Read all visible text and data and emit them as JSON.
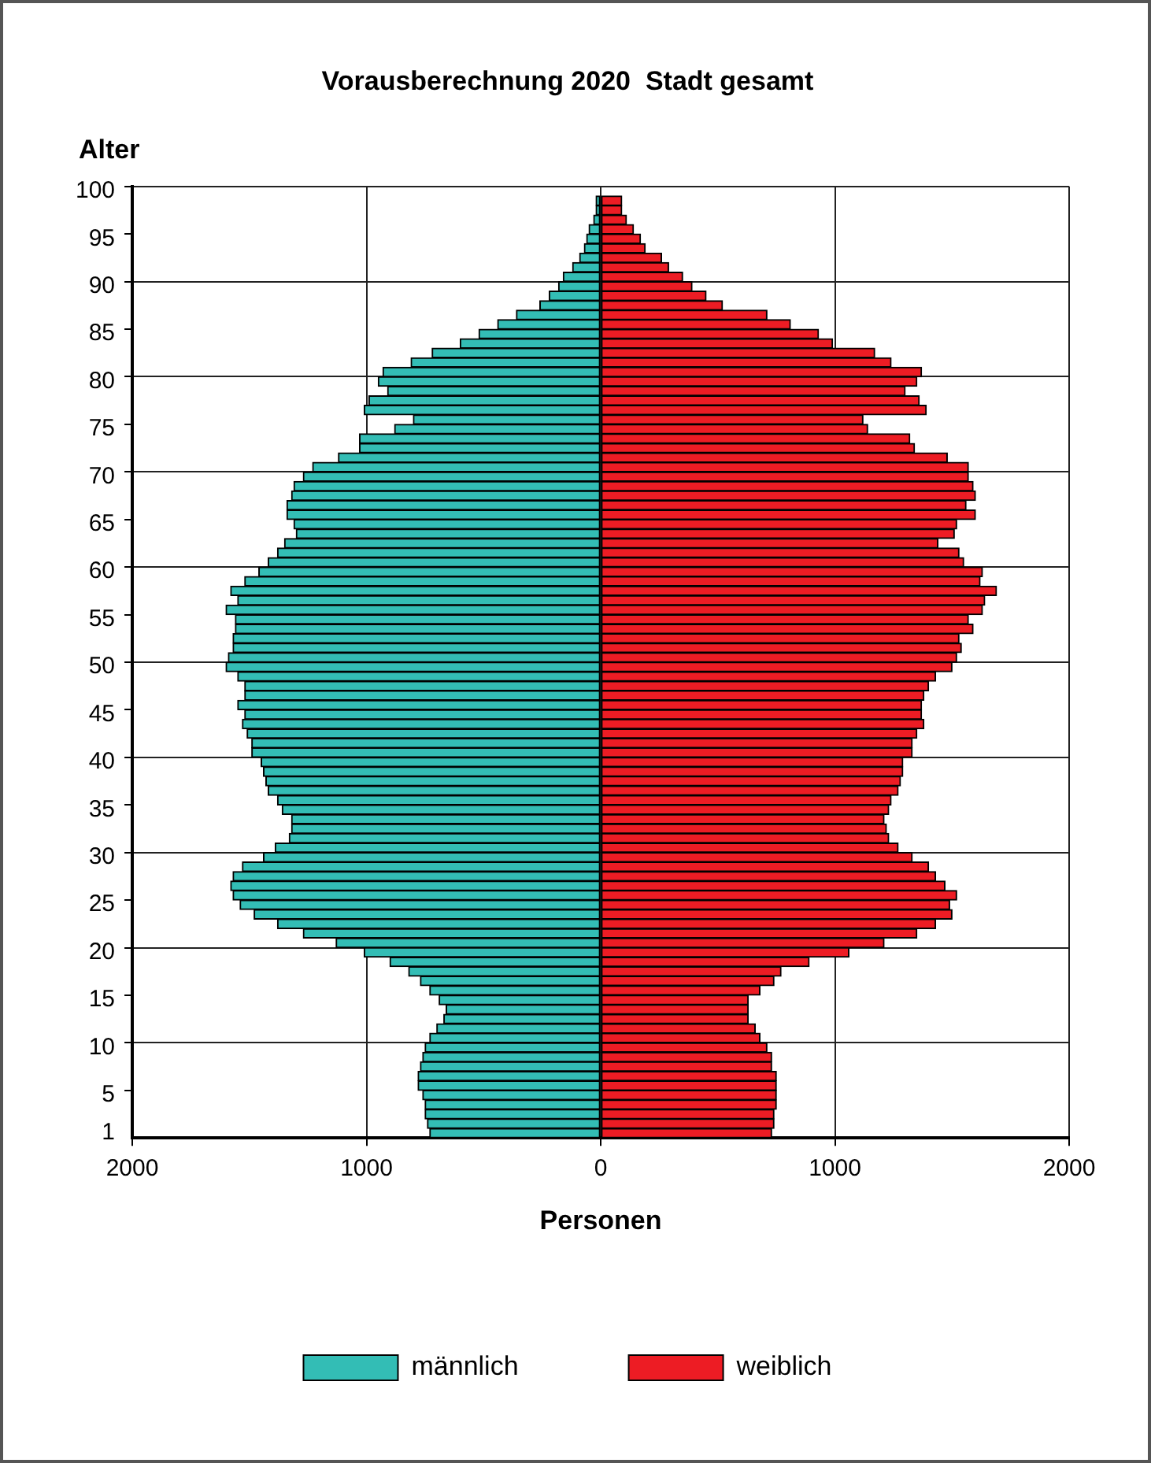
{
  "chart_data": {
    "type": "bar",
    "orientation": "horizontal",
    "title": "Vorausberechnung 2020  Stadt gesamt",
    "xlabel": "Personen",
    "ylabel": "Alter",
    "categories": [
      "100",
      null,
      null,
      null,
      null,
      "95",
      null,
      null,
      null,
      null,
      "90",
      null,
      null,
      null,
      null,
      "85",
      null,
      null,
      null,
      null,
      "80",
      null,
      null,
      null,
      null,
      "75",
      null,
      null,
      null,
      null,
      "70",
      null,
      null,
      null,
      null,
      "65",
      null,
      null,
      null,
      null,
      "60",
      null,
      null,
      null,
      null,
      "55",
      null,
      null,
      null,
      null,
      "50",
      null,
      null,
      null,
      null,
      "45",
      null,
      null,
      null,
      null,
      "40",
      null,
      null,
      null,
      null,
      "35",
      null,
      null,
      null,
      null,
      "30",
      null,
      null,
      null,
      null,
      "25",
      null,
      null,
      null,
      null,
      "20",
      null,
      null,
      null,
      null,
      "15",
      null,
      null,
      null,
      null,
      "10",
      null,
      null,
      null,
      null,
      "5",
      null,
      null,
      null,
      "1"
    ],
    "series": [
      {
        "name": "männlich",
        "color": "#33bdb5",
        "values": [
          null,
          -20,
          -20,
          -30,
          -50,
          -60,
          -70,
          -90,
          -120,
          -160,
          -180,
          -220,
          -260,
          -360,
          -440,
          -520,
          -600,
          -720,
          -810,
          -930,
          -950,
          -910,
          -990,
          -1010,
          -800,
          -880,
          -1030,
          -1030,
          -1120,
          -1230,
          -1270,
          -1310,
          -1320,
          -1340,
          -1340,
          -1310,
          -1300,
          -1350,
          -1380,
          -1420,
          -1460,
          -1520,
          -1580,
          -1550,
          -1600,
          -1560,
          -1560,
          -1570,
          -1570,
          -1590,
          -1600,
          -1550,
          -1520,
          -1520,
          -1550,
          -1520,
          -1530,
          -1510,
          -1490,
          -1490,
          -1450,
          -1440,
          -1430,
          -1420,
          -1380,
          -1360,
          -1320,
          -1320,
          -1330,
          -1390,
          -1440,
          -1530,
          -1570,
          -1580,
          -1570,
          -1540,
          -1480,
          -1380,
          -1270,
          -1130,
          -1010,
          -900,
          -820,
          -770,
          -730,
          -690,
          -660,
          -670,
          -700,
          -730,
          -750,
          -760,
          -770,
          -780,
          -780,
          -760,
          -750,
          -750,
          -740,
          -730
        ]
      },
      {
        "name": "weiblich",
        "color": "#ed1c24",
        "values": [
          null,
          90,
          90,
          110,
          140,
          170,
          190,
          260,
          290,
          350,
          390,
          450,
          520,
          710,
          810,
          930,
          990,
          1170,
          1240,
          1370,
          1350,
          1300,
          1360,
          1390,
          1120,
          1140,
          1320,
          1340,
          1480,
          1570,
          1570,
          1590,
          1600,
          1560,
          1600,
          1520,
          1510,
          1440,
          1530,
          1550,
          1630,
          1620,
          1690,
          1640,
          1630,
          1570,
          1590,
          1530,
          1540,
          1520,
          1500,
          1430,
          1400,
          1380,
          1370,
          1370,
          1380,
          1350,
          1330,
          1330,
          1290,
          1290,
          1280,
          1270,
          1240,
          1230,
          1210,
          1220,
          1230,
          1270,
          1330,
          1400,
          1430,
          1470,
          1520,
          1490,
          1500,
          1430,
          1350,
          1210,
          1060,
          890,
          770,
          740,
          680,
          630,
          630,
          630,
          660,
          680,
          710,
          730,
          730,
          750,
          750,
          750,
          750,
          740,
          740,
          730
        ]
      }
    ],
    "xlim": [
      -2000,
      2000
    ],
    "xticks": [
      {
        "value": -2000,
        "label": "2000"
      },
      {
        "value": -1000,
        "label": "1000"
      },
      0,
      1000,
      2000
    ],
    "stacked": true,
    "grid": true,
    "legend": "bottom"
  }
}
